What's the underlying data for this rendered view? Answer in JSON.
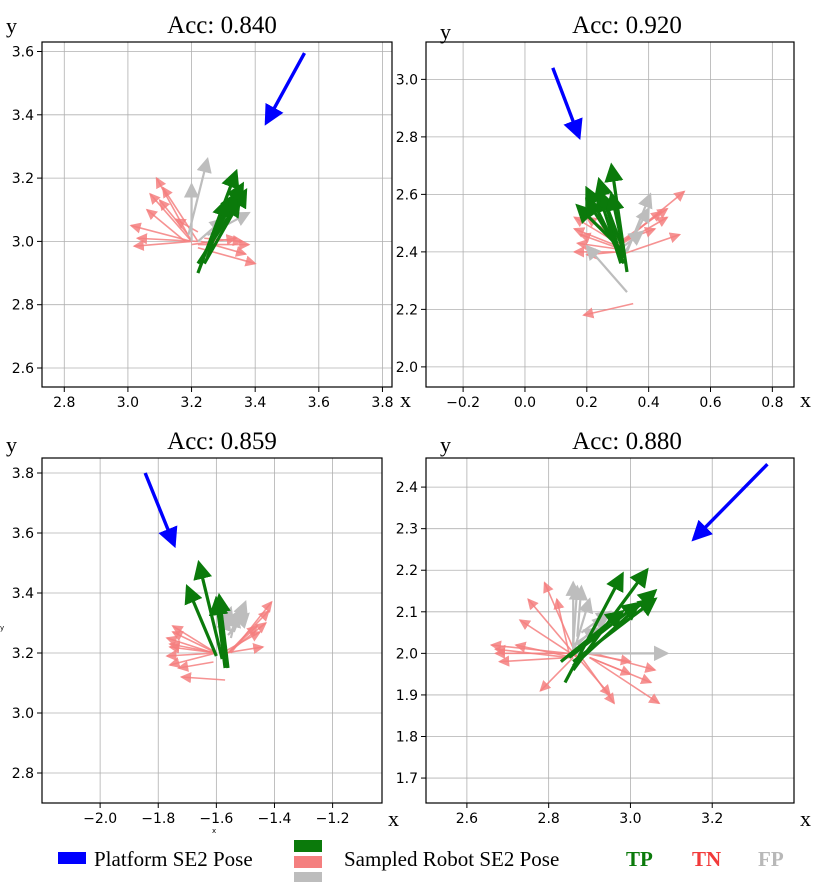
{
  "colors": {
    "platform": "#0000ff",
    "tp": "#0b7a0b",
    "tn": "#f47f7f",
    "fp": "#bdbdbd",
    "tp_text": "#0b7a0b",
    "tn_text": "#f23a3a",
    "fp_text": "#b8b8b8"
  },
  "legend": {
    "platform_label": "Platform SE2 Pose",
    "sampled_label": "Sampled Robot SE2 Pose",
    "tp": "TP",
    "tn": "TN",
    "fp": "FP"
  },
  "chart_data": [
    {
      "type": "scatter",
      "title": "Acc: 0.840",
      "xlabel": "x",
      "ylabel": "y",
      "xlim": [
        2.73,
        3.83
      ],
      "ylim": [
        2.54,
        3.63
      ],
      "xticks": [
        "2.8",
        "3.0",
        "3.2",
        "3.4",
        "3.6",
        "3.8"
      ],
      "xtick_values": [
        2.8,
        3.0,
        3.2,
        3.4,
        3.6,
        3.8
      ],
      "yticks": [
        "2.6",
        "2.8",
        "3.0",
        "3.2",
        "3.4",
        "3.6"
      ],
      "ytick_values": [
        2.6,
        2.8,
        3.0,
        3.2,
        3.4,
        3.6
      ],
      "grid": true,
      "platform": [
        [
          3.555,
          3.595,
          3.435,
          3.375
        ]
      ],
      "fp": [
        [
          3.19,
          3.02,
          3.25,
          3.26
        ],
        [
          3.2,
          3.0,
          3.2,
          3.18
        ],
        [
          3.25,
          3.02,
          3.38,
          3.09
        ],
        [
          3.22,
          3.0,
          3.3,
          3.07
        ]
      ],
      "tn": [
        [
          3.2,
          3.0,
          3.09,
          3.2
        ],
        [
          3.22,
          3.0,
          3.11,
          3.17
        ],
        [
          3.2,
          3.0,
          3.07,
          3.15
        ],
        [
          3.18,
          3.0,
          3.06,
          3.1
        ],
        [
          3.2,
          3.0,
          3.01,
          3.05
        ],
        [
          3.22,
          3.0,
          3.03,
          3.01
        ],
        [
          3.2,
          3.0,
          3.02,
          2.985
        ],
        [
          3.22,
          2.98,
          3.4,
          2.93
        ],
        [
          3.22,
          2.99,
          3.38,
          2.99
        ],
        [
          3.23,
          3.0,
          3.37,
          2.96
        ],
        [
          3.2,
          2.99,
          3.34,
          3.01
        ],
        [
          3.19,
          3.02,
          3.1,
          3.13
        ],
        [
          3.22,
          3.03,
          3.15,
          3.07
        ],
        [
          3.24,
          3.01,
          3.36,
          3.0
        ]
      ],
      "tp": [
        [
          3.22,
          2.9,
          3.34,
          3.22
        ],
        [
          3.24,
          2.93,
          3.37,
          3.16
        ],
        [
          3.22,
          2.93,
          3.35,
          3.13
        ],
        [
          3.24,
          2.96,
          3.34,
          3.15
        ],
        [
          3.25,
          2.95,
          3.31,
          3.13
        ],
        [
          3.25,
          2.98,
          3.36,
          3.18
        ]
      ]
    },
    {
      "type": "scatter",
      "title": "Acc: 0.920",
      "xlabel": "x",
      "ylabel": "y",
      "xlim": [
        -0.32,
        0.87
      ],
      "ylim": [
        1.93,
        3.13
      ],
      "xticks": [
        "−0.2",
        "0.0",
        "0.2",
        "0.4",
        "0.6",
        "0.8"
      ],
      "xtick_values": [
        -0.2,
        0.0,
        0.2,
        0.4,
        0.6,
        0.8
      ],
      "yticks": [
        "2.0",
        "2.2",
        "2.4",
        "2.6",
        "2.8",
        "3.0"
      ],
      "ytick_values": [
        2.0,
        2.2,
        2.4,
        2.6,
        2.8,
        3.0
      ],
      "grid": true,
      "platform": [
        [
          0.09,
          3.04,
          0.175,
          2.8
        ]
      ],
      "fp": [
        [
          0.33,
          2.4,
          0.405,
          2.6
        ],
        [
          0.32,
          2.39,
          0.4,
          2.55
        ],
        [
          0.33,
          2.26,
          0.2,
          2.42
        ],
        [
          0.32,
          2.42,
          0.38,
          2.47
        ]
      ],
      "tn": [
        [
          0.3,
          2.42,
          0.515,
          2.61
        ],
        [
          0.3,
          2.43,
          0.46,
          2.55
        ],
        [
          0.3,
          2.42,
          0.46,
          2.52
        ],
        [
          0.3,
          2.42,
          0.44,
          2.54
        ],
        [
          0.32,
          2.44,
          0.42,
          2.48
        ],
        [
          0.31,
          2.39,
          0.5,
          2.46
        ],
        [
          0.3,
          2.42,
          0.16,
          2.48
        ],
        [
          0.31,
          2.41,
          0.18,
          2.46
        ],
        [
          0.3,
          2.41,
          0.17,
          2.43
        ],
        [
          0.3,
          2.4,
          0.2,
          2.39
        ],
        [
          0.29,
          2.4,
          0.16,
          2.4
        ],
        [
          0.3,
          2.43,
          0.16,
          2.52
        ],
        [
          0.31,
          2.44,
          0.2,
          2.52
        ],
        [
          0.35,
          2.22,
          0.19,
          2.18
        ]
      ],
      "tp": [
        [
          0.33,
          2.33,
          0.28,
          2.7
        ],
        [
          0.32,
          2.36,
          0.2,
          2.62
        ],
        [
          0.31,
          2.38,
          0.24,
          2.65
        ],
        [
          0.31,
          2.36,
          0.24,
          2.6
        ],
        [
          0.32,
          2.4,
          0.25,
          2.6
        ],
        [
          0.32,
          2.4,
          0.17,
          2.56
        ],
        [
          0.32,
          2.38,
          0.2,
          2.58
        ],
        [
          0.32,
          2.4,
          0.28,
          2.6
        ]
      ]
    },
    {
      "type": "scatter",
      "title": "Acc: 0.859",
      "xlabel": "x",
      "ylabel": "y",
      "xlim": [
        -2.2,
        -1.03
      ],
      "ylim": [
        2.7,
        3.85
      ],
      "xticks": [
        "−2.0",
        "−1.8",
        "−1.6",
        "−1.4",
        "−1.2"
      ],
      "xtick_values": [
        -2.0,
        -1.8,
        -1.6,
        -1.4,
        -1.2
      ],
      "yticks": [
        "2.8",
        "3.0",
        "3.2",
        "3.4",
        "3.6",
        "3.8"
      ],
      "ytick_values": [
        2.8,
        3.0,
        3.2,
        3.4,
        3.6,
        3.8
      ],
      "grid": true,
      "platform": [
        [
          -1.845,
          3.8,
          -1.745,
          3.56
        ]
      ],
      "fp": [
        [
          -1.54,
          3.27,
          -1.5,
          3.37
        ],
        [
          -1.55,
          3.27,
          -1.51,
          3.35
        ],
        [
          -1.55,
          3.25,
          -1.53,
          3.33
        ],
        [
          -1.56,
          3.26,
          -1.49,
          3.33
        ],
        [
          -1.57,
          3.29,
          -1.55,
          3.35
        ],
        [
          -1.58,
          3.26,
          -1.56,
          3.32
        ]
      ],
      "tn": [
        [
          -1.55,
          3.2,
          -1.41,
          3.37
        ],
        [
          -1.56,
          3.2,
          -1.42,
          3.34
        ],
        [
          -1.56,
          3.2,
          -1.43,
          3.3
        ],
        [
          -1.58,
          3.2,
          -1.45,
          3.27
        ],
        [
          -1.57,
          3.2,
          -1.44,
          3.22
        ],
        [
          -1.56,
          3.2,
          -1.46,
          3.29
        ],
        [
          -1.6,
          3.2,
          -1.75,
          3.29
        ],
        [
          -1.61,
          3.2,
          -1.77,
          3.25
        ],
        [
          -1.6,
          3.2,
          -1.76,
          3.22
        ],
        [
          -1.6,
          3.2,
          -1.77,
          3.19
        ],
        [
          -1.6,
          3.2,
          -1.76,
          3.16
        ],
        [
          -1.6,
          3.2,
          -1.75,
          3.27
        ],
        [
          -1.61,
          3.17,
          -1.73,
          3.15
        ],
        [
          -1.57,
          3.11,
          -1.72,
          3.12
        ],
        [
          -1.6,
          3.2,
          -1.76,
          3.23
        ]
      ],
      "tp": [
        [
          -1.6,
          3.19,
          -1.7,
          3.42
        ],
        [
          -1.58,
          3.18,
          -1.66,
          3.5
        ],
        [
          -1.57,
          3.19,
          -1.6,
          3.38
        ],
        [
          -1.57,
          3.15,
          -1.6,
          3.38
        ],
        [
          -1.56,
          3.15,
          -1.59,
          3.39
        ]
      ]
    },
    {
      "type": "scatter",
      "title": "Acc: 0.880",
      "xlabel": "x",
      "ylabel": "y",
      "xlim": [
        2.5,
        3.4
      ],
      "ylim": [
        1.64,
        2.47
      ],
      "xticks": [
        "2.6",
        "2.8",
        "3.0",
        "3.2"
      ],
      "xtick_values": [
        2.6,
        2.8,
        3.0,
        3.2
      ],
      "yticks": [
        "1.7",
        "1.8",
        "1.9",
        "2.0",
        "2.1",
        "2.2",
        "2.3",
        "2.4"
      ],
      "ytick_values": [
        1.7,
        1.8,
        1.9,
        2.0,
        2.1,
        2.2,
        2.3,
        2.4
      ],
      "grid": true,
      "platform": [
        [
          3.335,
          2.455,
          3.155,
          2.275
        ]
      ],
      "fp": [
        [
          2.86,
          2.0,
          2.86,
          2.17
        ],
        [
          2.86,
          2.02,
          2.87,
          2.16
        ],
        [
          2.87,
          2.04,
          2.88,
          2.16
        ],
        [
          2.86,
          2.0,
          2.9,
          2.13
        ],
        [
          2.88,
          2.05,
          2.95,
          2.1
        ],
        [
          2.87,
          2.02,
          2.94,
          2.09
        ],
        [
          2.87,
          2.0,
          3.09,
          2.0
        ],
        [
          2.86,
          2.02,
          2.92,
          2.06
        ]
      ],
      "tn": [
        [
          2.87,
          1.99,
          2.79,
          2.17
        ],
        [
          2.87,
          1.99,
          2.75,
          2.13
        ],
        [
          2.87,
          1.99,
          2.73,
          2.08
        ],
        [
          2.85,
          2.0,
          2.66,
          2.02
        ],
        [
          2.85,
          2.0,
          2.67,
          2.0
        ],
        [
          2.85,
          1.99,
          2.68,
          1.98
        ],
        [
          2.85,
          1.99,
          2.67,
          2.01
        ],
        [
          2.86,
          1.99,
          2.72,
          2.02
        ],
        [
          2.86,
          1.99,
          2.78,
          1.91
        ],
        [
          2.88,
          1.99,
          2.96,
          1.88
        ],
        [
          2.9,
          1.99,
          3.05,
          1.93
        ],
        [
          2.9,
          1.99,
          3.07,
          1.88
        ],
        [
          2.91,
          2.0,
          3.06,
          1.96
        ],
        [
          2.9,
          1.99,
          3.0,
          1.95
        ],
        [
          2.89,
          2.0,
          3.0,
          1.98
        ],
        [
          2.85,
          2.0,
          2.82,
          2.13
        ],
        [
          2.88,
          1.98,
          2.95,
          1.9
        ]
      ],
      "tp": [
        [
          2.84,
          1.93,
          2.98,
          2.19
        ],
        [
          2.86,
          1.96,
          3.04,
          2.2
        ],
        [
          2.86,
          1.97,
          3.06,
          2.15
        ],
        [
          2.85,
          1.99,
          3.02,
          2.12
        ],
        [
          2.86,
          1.98,
          3.06,
          2.13
        ],
        [
          2.83,
          1.98,
          2.98,
          2.1
        ]
      ]
    }
  ]
}
